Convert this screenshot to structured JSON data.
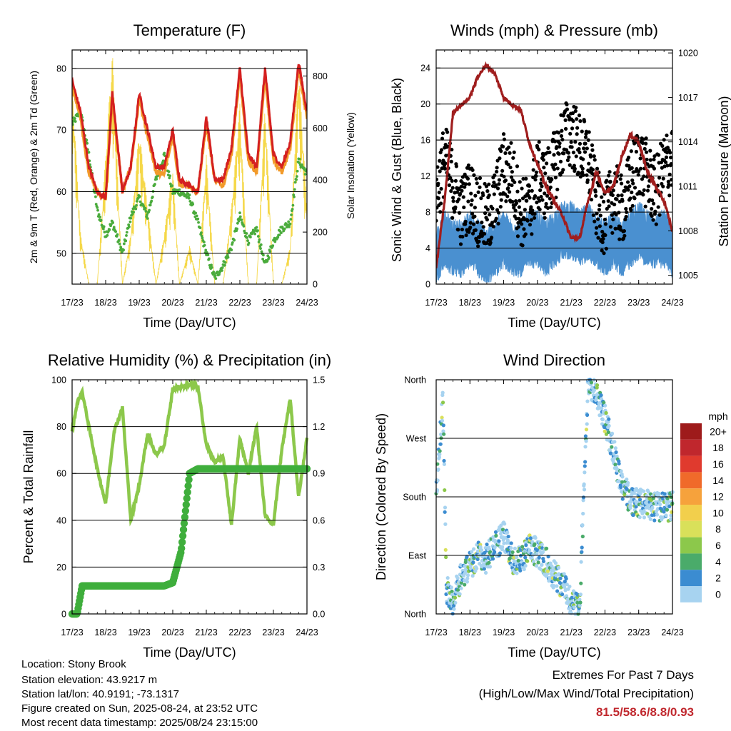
{
  "x_ticks": [
    "17/23",
    "18/23",
    "19/23",
    "20/23",
    "21/23",
    "22/23",
    "23/23",
    "24/23"
  ],
  "footer": {
    "location": "Location: Stony Brook",
    "elevation": "Station elevation: 43.9217 m",
    "latlon": "Station lat/lon: 40.9191; -73.1317",
    "created": "Figure created on Sun, 2025-08-24, at 23:52 UTC",
    "recent": "Most recent data timestamp: 2025/08/24 23:15:00"
  },
  "extremes": {
    "title": "Extremes For Past 7 Days",
    "subtitle": "(High/Low/Max Wind/Total Precipitation)",
    "values": "81.5/58.6/8.8/0.93"
  },
  "colors": {
    "temp_red": "#d42020",
    "temp_orange": "#f29a2a",
    "dewpoint_green": "#4aab3c",
    "insolation_yellow": "#f5d84a",
    "wind_blue": "#4a90d0",
    "gust_black": "#000000",
    "pressure_maroon": "#a01e1e",
    "rh_lightgreen": "#8cc84b",
    "precip_green": "#3fae3c"
  },
  "chart_data": [
    {
      "type": "line",
      "title": "Temperature (F)",
      "xlabel": "Time (Day/UTC)",
      "ylabel": "2m & 9m T (Red, Orange) & 2m Td (Green)",
      "ylabel_right": "Solar Insolation (Yellow)",
      "ylim": [
        45,
        83
      ],
      "yticks": [
        50,
        60,
        70,
        80
      ],
      "ylim_right": [
        0,
        900
      ],
      "yticks_right": [
        0,
        200,
        400,
        600,
        800
      ],
      "x": [
        0,
        0.25,
        0.5,
        0.75,
        1,
        1.2,
        1.5,
        1.75,
        2,
        2.25,
        2.5,
        2.75,
        3,
        3.2,
        3.5,
        3.75,
        4,
        4.25,
        4.5,
        4.75,
        5,
        5.25,
        5.5,
        5.75,
        6,
        6.25,
        6.5,
        6.75,
        7
      ],
      "series": [
        {
          "name": "2m T",
          "values": [
            78,
            73,
            64,
            60,
            59,
            76,
            60,
            64,
            76,
            70,
            64,
            64,
            70,
            62,
            61,
            60,
            72,
            62,
            62,
            67,
            80,
            66,
            64,
            80,
            66,
            64,
            68,
            81,
            73
          ]
        },
        {
          "name": "9m T",
          "values": [
            77,
            72,
            63,
            60,
            59,
            75,
            60,
            64,
            75,
            69,
            63,
            63,
            69,
            61,
            61,
            60,
            71,
            62,
            61,
            66,
            79,
            65,
            63,
            79,
            65,
            63,
            67,
            80,
            72
          ]
        },
        {
          "name": "2m Td",
          "values": [
            71,
            73,
            66,
            57,
            53,
            55,
            50,
            56,
            59,
            56,
            62,
            66,
            60,
            60,
            59,
            55,
            50,
            46,
            48,
            51,
            56,
            52,
            54,
            48,
            52,
            54,
            55,
            65,
            63
          ]
        },
        {
          "name": "Solar Insolation",
          "values": [
            800,
            200,
            0,
            0,
            500,
            900,
            0,
            200,
            600,
            300,
            0,
            200,
            450,
            0,
            150,
            0,
            500,
            0,
            0,
            300,
            700,
            0,
            0,
            700,
            0,
            0,
            150,
            850,
            300
          ]
        }
      ]
    },
    {
      "type": "scatter",
      "title": "Winds (mph) & Pressure (mb)",
      "xlabel": "Time (Day/UTC)",
      "ylabel": "Sonic Wind & Gust (Blue, Black)",
      "ylabel_right": "Station Pressure (Maroon)",
      "ylim": [
        0,
        26
      ],
      "yticks": [
        0,
        4,
        8,
        12,
        16,
        20,
        24
      ],
      "ylim_right": [
        1004.4,
        1020.2
      ],
      "yticks_right": [
        1005,
        1008,
        1011,
        1014,
        1017,
        1020
      ],
      "x": [
        0,
        0.25,
        0.5,
        0.75,
        1,
        1.25,
        1.5,
        1.75,
        2,
        2.25,
        2.5,
        2.75,
        3,
        3.25,
        3.5,
        3.75,
        4,
        4.25,
        4.5,
        4.75,
        5,
        5.25,
        5.5,
        5.75,
        6,
        6.25,
        6.5,
        6.75,
        7
      ],
      "series": [
        {
          "name": "Sonic Wind",
          "values": [
            3,
            5,
            4,
            4,
            5,
            4,
            3,
            4,
            5,
            4,
            4,
            5,
            5,
            4,
            5,
            6,
            6,
            5,
            6,
            5,
            4,
            5,
            4,
            5,
            6,
            5,
            5,
            5,
            4
          ]
        },
        {
          "name": "Gust",
          "values": [
            10,
            14,
            11,
            8,
            10,
            8,
            7,
            9,
            13,
            12,
            8,
            8,
            12,
            11,
            13,
            16,
            17,
            15,
            14,
            9,
            7,
            10,
            8,
            11,
            14,
            12,
            10,
            13,
            14
          ]
        },
        {
          "name": "Station Pressure",
          "values": [
            1005.5,
            1010,
            1016,
            1016.5,
            1017,
            1018.5,
            1019.2,
            1018.5,
            1017,
            1016.5,
            1016.2,
            1014,
            1012.5,
            1011,
            1010,
            1009,
            1007.5,
            1007.5,
            1010,
            1012,
            1010.5,
            1011,
            1013,
            1014.5,
            1014,
            1012,
            1011,
            1010,
            1008
          ]
        }
      ]
    },
    {
      "type": "line",
      "title": "Relative Humidity (%) & Precipitation (in)",
      "xlabel": "Time (Day/UTC)",
      "ylabel": "Percent & Total Rainfall",
      "ylim": [
        0,
        100
      ],
      "yticks": [
        0,
        20,
        40,
        60,
        80,
        100
      ],
      "ylim_right": [
        0,
        1.5
      ],
      "yticks_right": [
        "0.0",
        "0.3",
        "0.6",
        "0.9",
        "1.2",
        "1.5"
      ],
      "x": [
        0,
        0.15,
        0.3,
        0.5,
        0.75,
        1,
        1.25,
        1.5,
        1.75,
        2,
        2.25,
        2.5,
        2.75,
        3,
        3.25,
        3.5,
        3.75,
        4,
        4.25,
        4.5,
        4.75,
        5,
        5.25,
        5.5,
        5.75,
        6,
        6.25,
        6.5,
        6.75,
        7
      ],
      "series": [
        {
          "name": "Relative Humidity",
          "values": [
            78,
            90,
            95,
            80,
            62,
            47,
            78,
            88,
            40,
            55,
            77,
            68,
            72,
            96,
            97,
            98,
            97,
            72,
            65,
            67,
            38,
            75,
            60,
            80,
            42,
            38,
            70,
            92,
            50,
            75
          ]
        },
        {
          "name": "Total Rainfall",
          "values": [
            0,
            0,
            0.18,
            0.18,
            0.18,
            0.18,
            0.18,
            0.18,
            0.18,
            0.18,
            0.18,
            0.18,
            0.18,
            0.2,
            0.4,
            0.9,
            0.93,
            0.93,
            0.93,
            0.93,
            0.93,
            0.93,
            0.93,
            0.93,
            0.93,
            0.93,
            0.93,
            0.93,
            0.93,
            0.93
          ]
        }
      ]
    },
    {
      "type": "scatter",
      "title": "Wind Direction",
      "xlabel": "Time (Day/UTC)",
      "ylabel": "Direction (Colored By Speed)",
      "yticks": [
        "North",
        "East",
        "South",
        "West",
        "North"
      ],
      "ylim": [
        0,
        360
      ],
      "legend_title": "mph",
      "legend_labels": [
        "20+",
        "18",
        "16",
        "14",
        "12",
        "10",
        "8",
        "6",
        "4",
        "2",
        "0"
      ],
      "legend_colors": [
        "#9e1b1b",
        "#c0272d",
        "#e03a2e",
        "#f06a2a",
        "#f6a23c",
        "#f2cf4c",
        "#d9e05a",
        "#8cc84b",
        "#4aab6a",
        "#3b8cd1",
        "#a7d3f0"
      ],
      "x": [
        0,
        0.2,
        0.3,
        0.5,
        0.75,
        1,
        1.25,
        1.5,
        1.75,
        2,
        2.25,
        2.5,
        2.75,
        3,
        3.25,
        3.5,
        3.75,
        4,
        4.25,
        4.5,
        4.75,
        5,
        5.25,
        5.5,
        5.75,
        6,
        6.25,
        6.5,
        6.75,
        7
      ],
      "values": [
        180,
        330,
        40,
        20,
        60,
        75,
        90,
        85,
        105,
        120,
        85,
        80,
        100,
        95,
        80,
        60,
        45,
        20,
        5,
        360,
        340,
        300,
        250,
        200,
        175,
        170,
        170,
        165,
        165,
        165
      ]
    }
  ]
}
